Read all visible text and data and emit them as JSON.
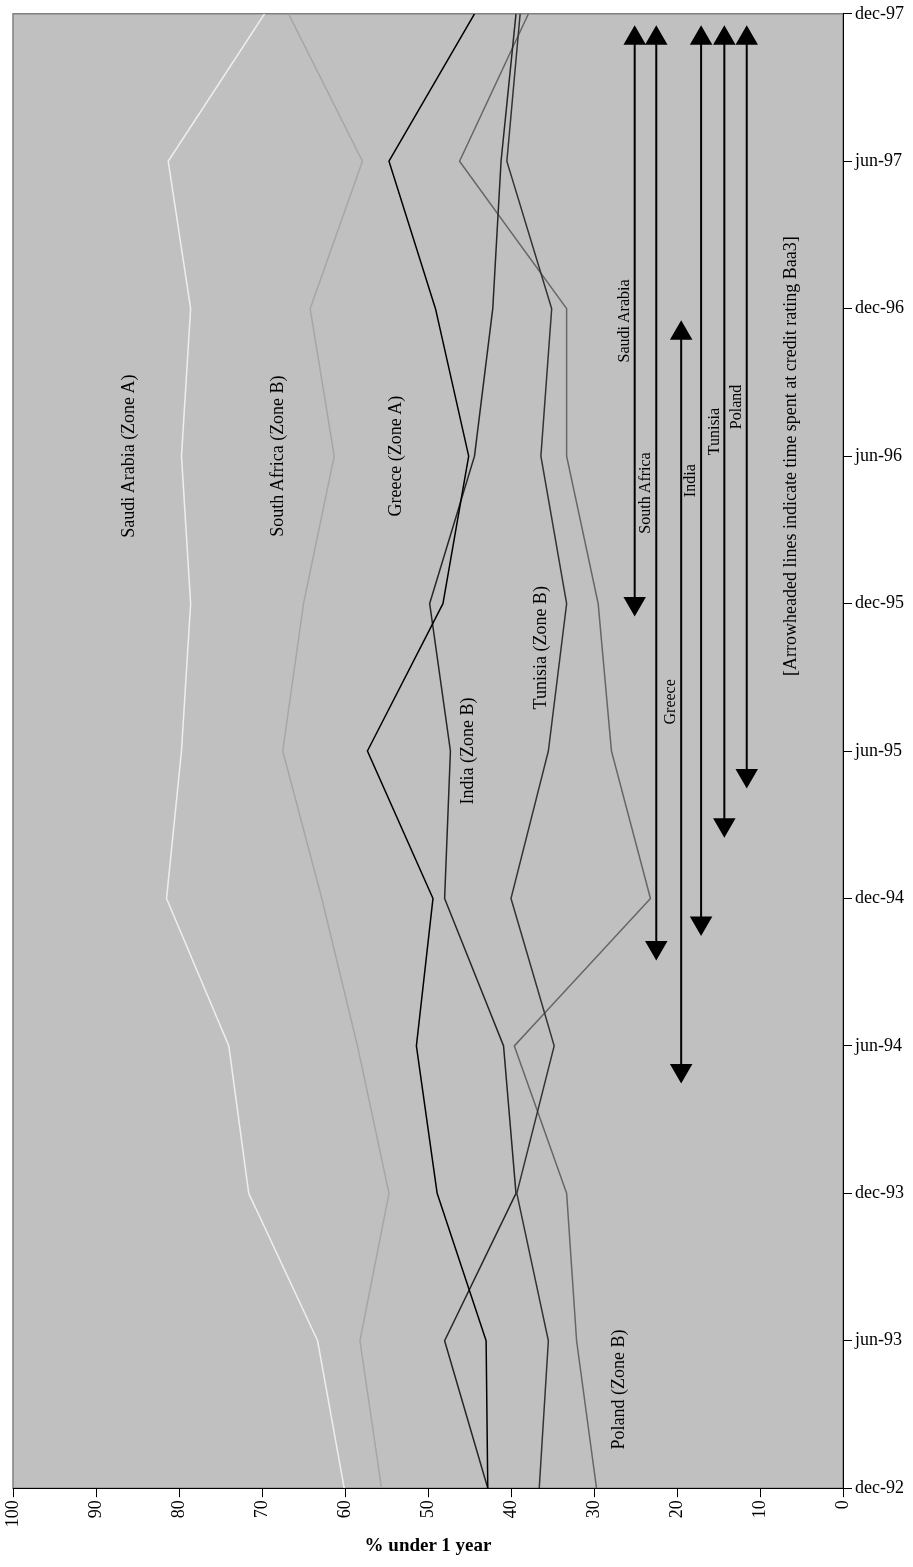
{
  "chart_data": {
    "type": "line",
    "orientation": "horizontal",
    "xlabel": "% under 1 year",
    "x": [
      "1992-12",
      "1993-06",
      "1993-12",
      "1994-06",
      "1994-12",
      "1995-06",
      "1995-12",
      "1996-06",
      "1996-12",
      "1997-06",
      "1997-12"
    ],
    "ylim": [
      "1992-12",
      "1997-12"
    ],
    "yticks": [
      {
        "value": "1992-12",
        "label": "dec-92"
      },
      {
        "value": "1993-06",
        "label": "jun-93"
      },
      {
        "value": "1993-12",
        "label": "dec-93"
      },
      {
        "value": "1994-06",
        "label": "jun-94"
      },
      {
        "value": "1994-12",
        "label": "dec-94"
      },
      {
        "value": "1995-06",
        "label": "jun-95"
      },
      {
        "value": "1995-12",
        "label": "dec-95"
      },
      {
        "value": "1996-06",
        "label": "jun-96"
      },
      {
        "value": "1996-12",
        "label": "dec-96"
      },
      {
        "value": "1997-06",
        "label": "jun-97"
      },
      {
        "value": "1997-12",
        "label": "dec-97"
      }
    ],
    "xlim": [
      100,
      0
    ],
    "xticks": [
      0,
      10,
      20,
      30,
      40,
      50,
      60,
      70,
      80,
      90,
      100
    ],
    "grid": false,
    "legend": false,
    "marker": "none",
    "series": [
      {
        "name": "Saudi Arabia (Zone A)",
        "color": "#eeeeee",
        "values": [
          60.1,
          63.3,
          71.6,
          74.0,
          81.5,
          79.7,
          78.6,
          79.7,
          78.6,
          81.3,
          69.7
        ]
      },
      {
        "name": "South Africa (Zone B)",
        "color": "#a6a6a6",
        "values": [
          55.6,
          58.2,
          54.7,
          58.5,
          62.8,
          67.5,
          65.0,
          61.3,
          64.2,
          57.9,
          66.8
        ]
      },
      {
        "name": "Greece (Zone A)",
        "color": "#000000",
        "values": [
          42.8,
          43.0,
          48.9,
          51.4,
          49.4,
          57.3,
          48.2,
          45.1,
          49.1,
          54.7,
          44.4
        ]
      },
      {
        "name": "India (Zone B)",
        "color": "#262626",
        "values": [
          42.8,
          48.0,
          39.4,
          40.9,
          48.0,
          47.3,
          49.8,
          44.4,
          42.2,
          41.2,
          39.4
        ]
      },
      {
        "name": "Tunisia (Zone B)",
        "color": "#333333",
        "values": [
          36.6,
          35.5,
          39.3,
          34.8,
          40.0,
          35.5,
          33.3,
          36.4,
          35.1,
          40.5,
          38.9
        ]
      },
      {
        "name": "Poland (Zone B)",
        "color": "#666666",
        "values": [
          29.7,
          32.1,
          33.3,
          39.6,
          23.2,
          27.9,
          29.5,
          33.3,
          33.3,
          46.2,
          37.9
        ]
      },
      {
        "name": "Saudi Arabia",
        "color": "#000000",
        "marker": "triangle",
        "x": [
          "1995-12",
          "1997-11"
        ],
        "values": [
          25.1,
          25.1
        ]
      },
      {
        "name": "South Africa",
        "color": "#000000",
        "marker": "triangle",
        "x": [
          "1994-10",
          "1997-11"
        ],
        "values": [
          22.5,
          22.5
        ]
      },
      {
        "name": "Greece",
        "color": "#000000",
        "marker": "triangle",
        "x": [
          "1994-05",
          "1996-11"
        ],
        "values": [
          19.5,
          19.5
        ]
      },
      {
        "name": "India",
        "color": "#000000",
        "marker": "triangle",
        "x": [
          "1994-11",
          "1997-11"
        ],
        "values": [
          17.1,
          17.1
        ]
      },
      {
        "name": "Tunisia",
        "color": "#000000",
        "marker": "triangle",
        "x": [
          "1995-03",
          "1997-11"
        ],
        "values": [
          14.3,
          14.3
        ]
      },
      {
        "name": "Poland",
        "color": "#000000",
        "marker": "triangle",
        "x": [
          "1995-05",
          "1997-11"
        ],
        "values": [
          11.6,
          11.6
        ]
      }
    ],
    "annotations": [
      "[Arrowheaded lines indicate time spent at credit rating Baa3]"
    ]
  }
}
